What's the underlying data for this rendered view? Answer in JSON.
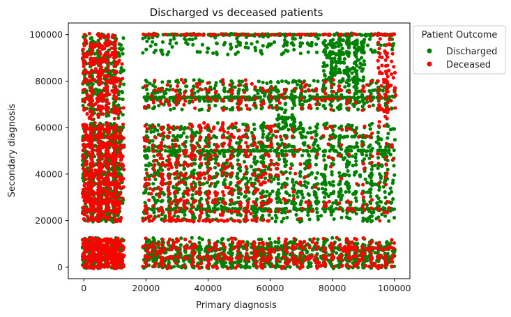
{
  "chart_data": {
    "type": "scatter",
    "title": "Discharged vs deceased patients",
    "xlabel": "Primary diagnosis",
    "ylabel": "Secondary diagnosis",
    "xlim": [
      -5000,
      105000
    ],
    "ylim": [
      -5000,
      105000
    ],
    "xticks": [
      0,
      20000,
      40000,
      60000,
      80000,
      100000
    ],
    "yticks": [
      0,
      20000,
      40000,
      60000,
      80000,
      100000
    ],
    "grid": false,
    "legend": {
      "title": "Patient Outcome",
      "placement": "outside-top-right"
    },
    "series": [
      {
        "name": "Discharged",
        "color": "#008000",
        "clusters": [
          {
            "x": [
              0,
              12000
            ],
            "y": [
              20000,
              62000
            ],
            "n": 700
          },
          {
            "x": [
              0,
              12000
            ],
            "y": [
              65000,
              100000
            ],
            "n": 350
          },
          {
            "x": [
              0,
              12000
            ],
            "y": [
              0,
              12000
            ],
            "n": 350
          },
          {
            "x": [
              19000,
              100000
            ],
            "y": [
              0,
              11000
            ],
            "n": 1300
          },
          {
            "x": [
              19000,
              100000
            ],
            "y": [
              20000,
              62000
            ],
            "n": 1500
          },
          {
            "x": [
              19000,
              100000
            ],
            "y": [
              68000,
              80000
            ],
            "n": 500
          },
          {
            "x": [
              19000,
              100000
            ],
            "y": [
              92000,
              100000
            ],
            "n": 200
          },
          {
            "x": [
              78000,
              90000
            ],
            "y": [
              80000,
              98000
            ],
            "n": 220
          },
          {
            "x": [
              62000,
              68000
            ],
            "y": [
              60000,
              68000
            ],
            "n": 40
          }
        ],
        "lines": [
          {
            "y": 100000,
            "x": [
              19000,
              100000
            ],
            "n": 200
          },
          {
            "y": 73000,
            "x": [
              19000,
              100000
            ],
            "n": 150
          },
          {
            "y": 50000,
            "x": [
              19000,
              100000
            ],
            "n": 120
          },
          {
            "y": 25000,
            "x": [
              19000,
              100000
            ],
            "n": 120
          }
        ]
      },
      {
        "name": "Deceased",
        "color": "#ff0000",
        "clusters": [
          {
            "x": [
              0,
              12000
            ],
            "y": [
              20000,
              62000
            ],
            "n": 650
          },
          {
            "x": [
              0,
              12000
            ],
            "y": [
              65000,
              100000
            ],
            "n": 320
          },
          {
            "x": [
              0,
              12000
            ],
            "y": [
              0,
              12000
            ],
            "n": 380
          },
          {
            "x": [
              19000,
              100000
            ],
            "y": [
              0,
              11000
            ],
            "n": 450
          },
          {
            "x": [
              19000,
              60000
            ],
            "y": [
              20000,
              62000
            ],
            "n": 420
          },
          {
            "x": [
              60000,
              100000
            ],
            "y": [
              20000,
              62000
            ],
            "n": 120
          },
          {
            "x": [
              19000,
              100000
            ],
            "y": [
              68000,
              80000
            ],
            "n": 160
          },
          {
            "x": [
              95000,
              100000
            ],
            "y": [
              60000,
              100000
            ],
            "n": 80
          }
        ],
        "lines": [
          {
            "y": 100000,
            "x": [
              19000,
              100000
            ],
            "n": 80
          },
          {
            "y": 20000,
            "x": [
              19000,
              60000
            ],
            "n": 50
          }
        ]
      }
    ]
  }
}
